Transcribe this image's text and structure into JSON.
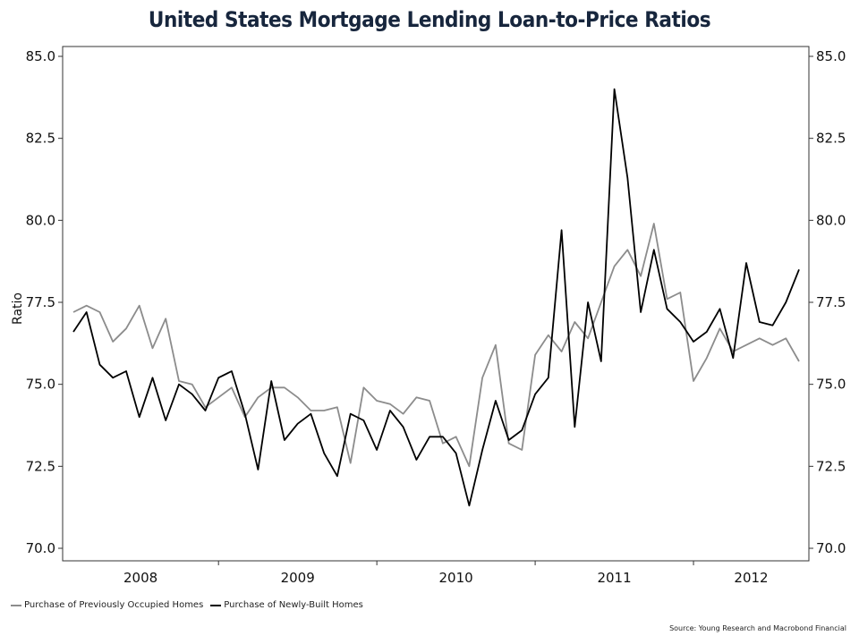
{
  "chart_data": {
    "type": "line",
    "title": "United States Mortgage Lending Loan-to-Price Ratios",
    "ylabel": "Ratio",
    "ylim": [
      70.0,
      85.0
    ],
    "yticks": [
      "70.0",
      "72.5",
      "75.0",
      "77.5",
      "80.0",
      "82.5",
      "85.0"
    ],
    "year_labels": [
      "2008",
      "2009",
      "2010",
      "2011",
      "2012"
    ],
    "x_start": "2008-01",
    "x_end": "2012-12",
    "series": [
      {
        "name": "Purchase of Previously Occupied Homes",
        "color": "#8c8c8c",
        "values": [
          77.2,
          77.4,
          77.2,
          76.3,
          76.7,
          77.4,
          76.1,
          77.0,
          75.1,
          75.0,
          74.3,
          74.6,
          74.9,
          74.0,
          74.6,
          74.9,
          74.9,
          74.6,
          74.2,
          74.2,
          74.3,
          72.6,
          74.9,
          74.5,
          74.4,
          74.1,
          74.6,
          74.5,
          73.2,
          73.4,
          72.5,
          75.2,
          76.2,
          73.2,
          73.0,
          75.9,
          76.5,
          76.0,
          76.9,
          76.4,
          77.5,
          78.6,
          79.1,
          78.3,
          79.9,
          77.6,
          77.8,
          75.1,
          75.8,
          76.7,
          76.0,
          76.2,
          76.4,
          76.2,
          76.4,
          75.7
        ]
      },
      {
        "name": "Purchase of Newly-Built Homes",
        "color": "#000000",
        "values": [
          76.6,
          77.2,
          75.6,
          75.2,
          75.4,
          74.0,
          75.2,
          73.9,
          75.0,
          74.7,
          74.2,
          75.2,
          75.4,
          74.1,
          72.4,
          75.1,
          73.3,
          73.8,
          74.1,
          72.9,
          72.2,
          74.1,
          73.9,
          73.0,
          74.2,
          73.7,
          72.7,
          73.4,
          73.4,
          72.9,
          71.3,
          73.0,
          74.5,
          73.3,
          73.6,
          74.7,
          75.2,
          79.7,
          73.7,
          77.5,
          75.7,
          84.0,
          81.3,
          77.2,
          79.1,
          77.3,
          76.9,
          76.3,
          76.6,
          77.3,
          75.8,
          78.7,
          76.9,
          76.8,
          77.5,
          78.5
        ]
      }
    ],
    "grid": false,
    "legend_position": "bottom-left",
    "source": "Source: Young Research and Macrobond Financial"
  }
}
